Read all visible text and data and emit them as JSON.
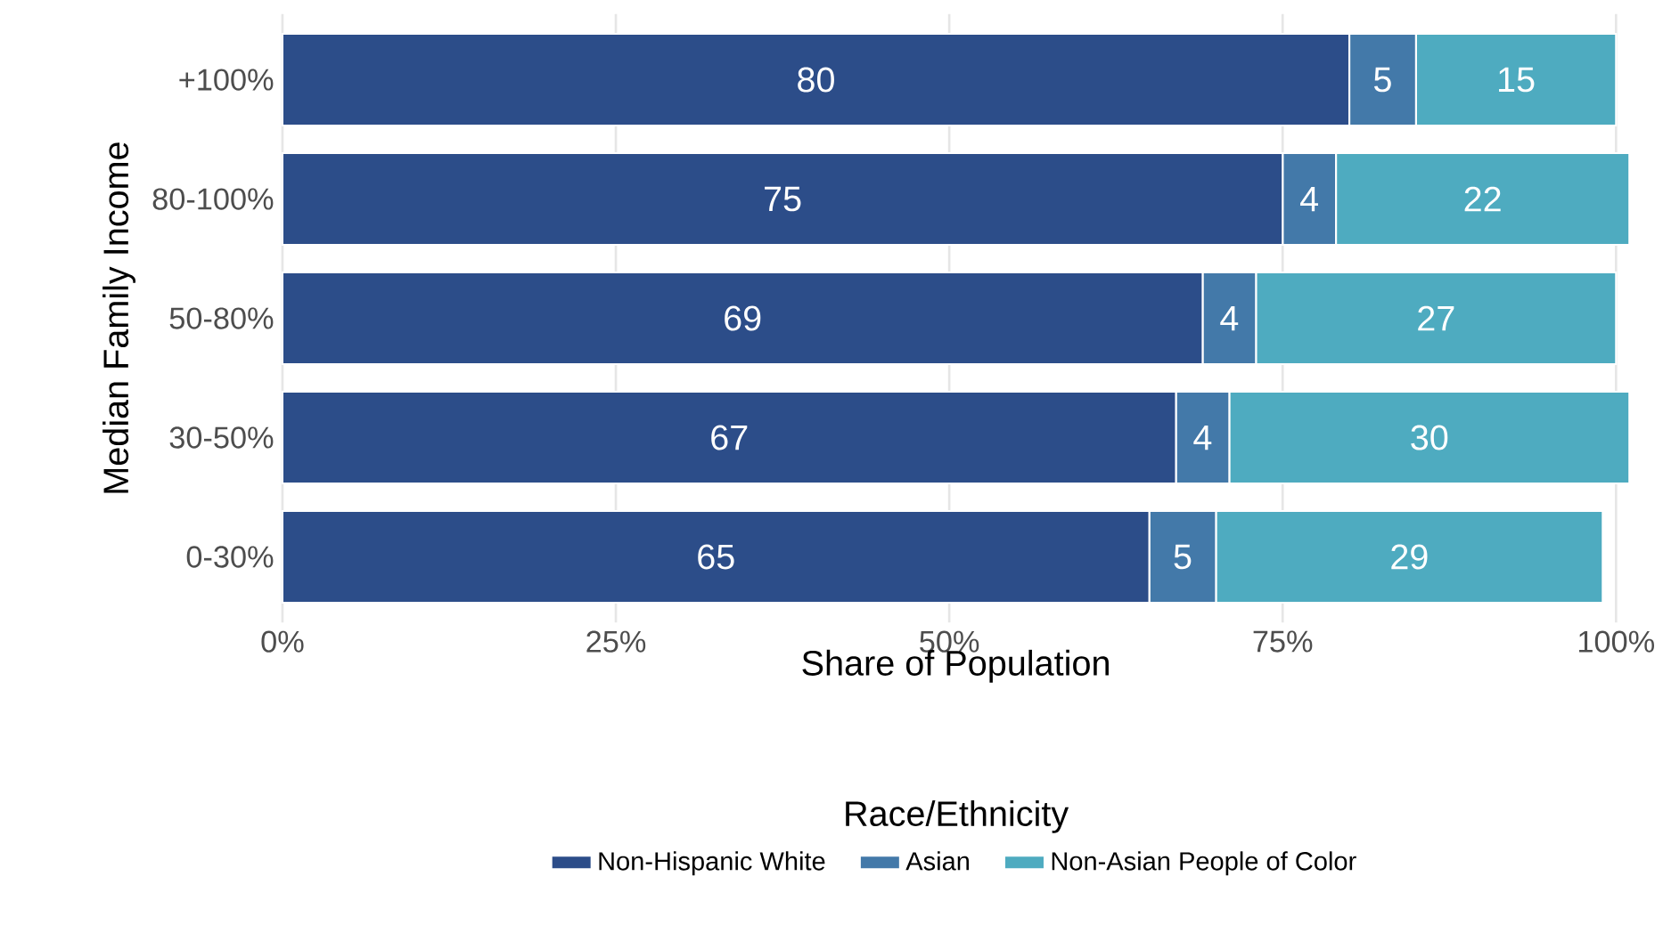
{
  "chart_data": {
    "type": "bar",
    "orientation": "horizontal",
    "stacked": true,
    "xlabel": "Share of Population",
    "ylabel": "Median Family Income",
    "legend_title": "Race/Ethnicity",
    "legend": "bottom",
    "grid": "x",
    "data_labels": true,
    "categories": [
      "+100%",
      "80-100%",
      "50-80%",
      "30-50%",
      "0-30%"
    ],
    "series": [
      {
        "name": "Non-Hispanic White",
        "color": "#2c4d89",
        "values": [
          80,
          75,
          69,
          67,
          65
        ]
      },
      {
        "name": "Asian",
        "color": "#4379a9",
        "values": [
          5,
          4,
          4,
          4,
          5
        ]
      },
      {
        "name": "Non-Asian People of Color",
        "color": "#4eabc0",
        "values": [
          15,
          22,
          27,
          30,
          29
        ]
      }
    ],
    "xlim": [
      0,
      101
    ],
    "xticks": [
      {
        "value": 0,
        "label": "0%"
      },
      {
        "value": 25,
        "label": "25%"
      },
      {
        "value": 50,
        "label": "50%"
      },
      {
        "value": 75,
        "label": "75%"
      },
      {
        "value": 100,
        "label": "100%"
      }
    ]
  }
}
